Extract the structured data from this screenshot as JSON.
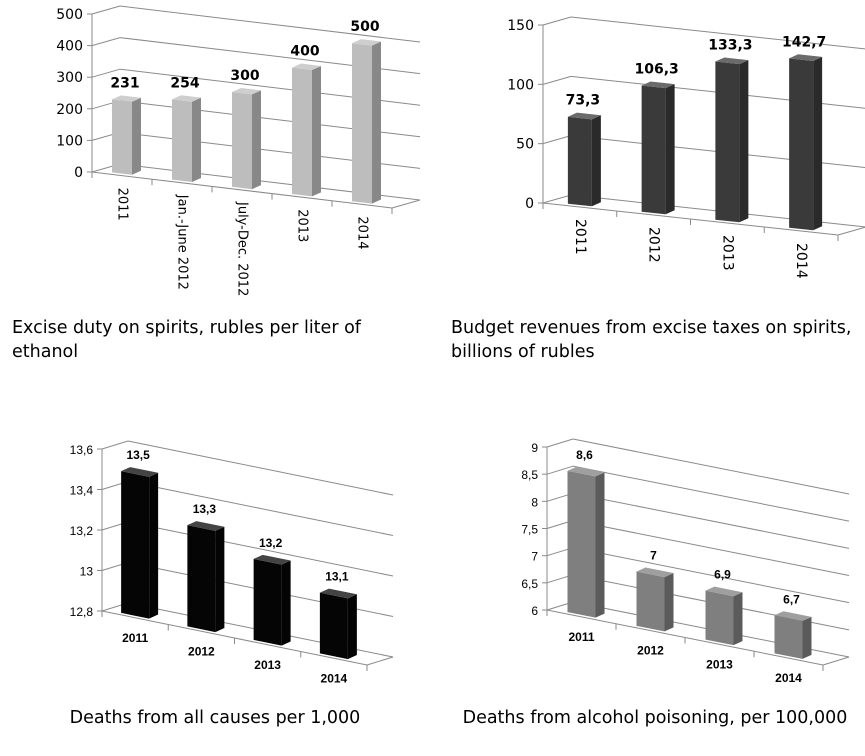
{
  "chart_data": [
    {
      "type": "bar",
      "title": "Excise duty on spirits, rubles per liter of ethanol",
      "categories": [
        "2011",
        "Jan.-June 2012",
        "July-Dec. 2012",
        "2013",
        "2014"
      ],
      "values": [
        231,
        254,
        300,
        400,
        500
      ],
      "value_labels": [
        "231",
        "254",
        "300",
        "400",
        "500"
      ],
      "ylim": [
        0,
        500
      ],
      "yticks": [
        "0",
        "100",
        "200",
        "300",
        "400",
        "500"
      ],
      "grid": true,
      "bar_color": "#bdbdbd",
      "x_label_orientation": "vertical"
    },
    {
      "type": "bar",
      "title": "Budget revenues from excise taxes on spirits, billions of rubles",
      "categories": [
        "2011",
        "2012",
        "2013",
        "2014"
      ],
      "values": [
        73.3,
        106.3,
        133.3,
        142.7
      ],
      "value_labels": [
        "73,3",
        "106,3",
        "133,3",
        "142,7"
      ],
      "ylim": [
        0,
        150
      ],
      "yticks": [
        "0",
        "50",
        "100",
        "150"
      ],
      "grid": true,
      "bar_color": "#3a3a3a",
      "x_label_orientation": "vertical"
    },
    {
      "type": "bar",
      "title": "Deaths from all causes per 1,000",
      "categories": [
        "2011",
        "2012",
        "2013",
        "2014"
      ],
      "values": [
        13.5,
        13.3,
        13.2,
        13.1
      ],
      "value_labels": [
        "13,5",
        "13,3",
        "13,2",
        "13,1"
      ],
      "ylim": [
        12.8,
        13.6
      ],
      "yticks": [
        "12,8",
        "13",
        "13,2",
        "13,4",
        "13,6"
      ],
      "grid": true,
      "bar_color": "#050505",
      "x_label_orientation": "horizontal"
    },
    {
      "type": "bar",
      "title": "Deaths from alcohol poisoning, per 100,000",
      "categories": [
        "2011",
        "2012",
        "2013",
        "2014"
      ],
      "values": [
        8.6,
        7,
        6.9,
        6.7
      ],
      "value_labels": [
        "8,6",
        "7",
        "6,9",
        "6,7"
      ],
      "ylim": [
        6,
        9
      ],
      "yticks": [
        "6",
        "6,5",
        "7",
        "7,5",
        "8",
        "8,5",
        "9"
      ],
      "grid": true,
      "bar_color": "#7f7f7f",
      "x_label_orientation": "horizontal"
    }
  ],
  "captions": {
    "c1": "Excise duty on spirits, rubles per liter of ethanol",
    "c2": "Budget revenues from excise taxes on spirits, billions of rubles",
    "c3": "Deaths from all causes per 1,000",
    "c4": "Deaths from alcohol poisoning, per 100,000"
  }
}
